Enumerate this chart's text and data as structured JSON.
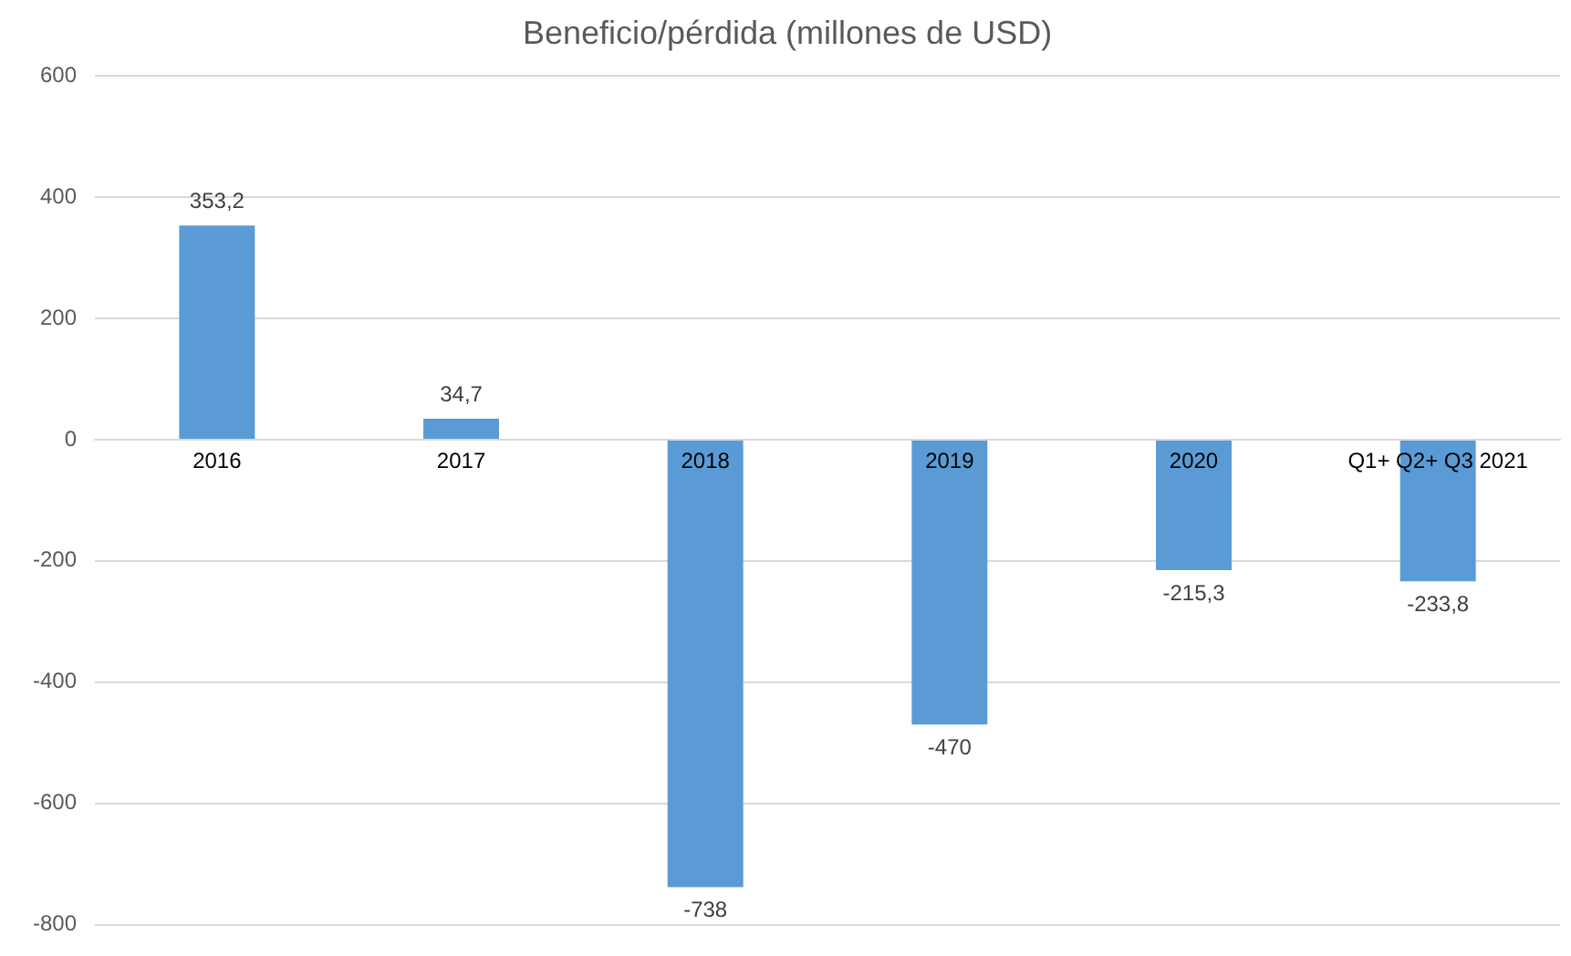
{
  "chart_data": {
    "type": "bar",
    "title": "Beneficio/pérdida (millones de USD)",
    "categories": [
      "2016",
      "2017",
      "2018",
      "2019",
      "2020",
      "Q1+ Q2+ Q3 2021"
    ],
    "values": [
      353.2,
      34.7,
      -738,
      -470,
      -215.3,
      -233.8
    ],
    "value_labels": [
      "353,2",
      "34,7",
      "-738",
      "-470",
      "-215,3",
      "-233,8"
    ],
    "color": "#5b9bd5",
    "ylim": [
      -800,
      600
    ],
    "yticks": [
      -800,
      -600,
      -400,
      -200,
      0,
      200,
      400,
      600
    ],
    "grid": "y",
    "legend": false
  }
}
